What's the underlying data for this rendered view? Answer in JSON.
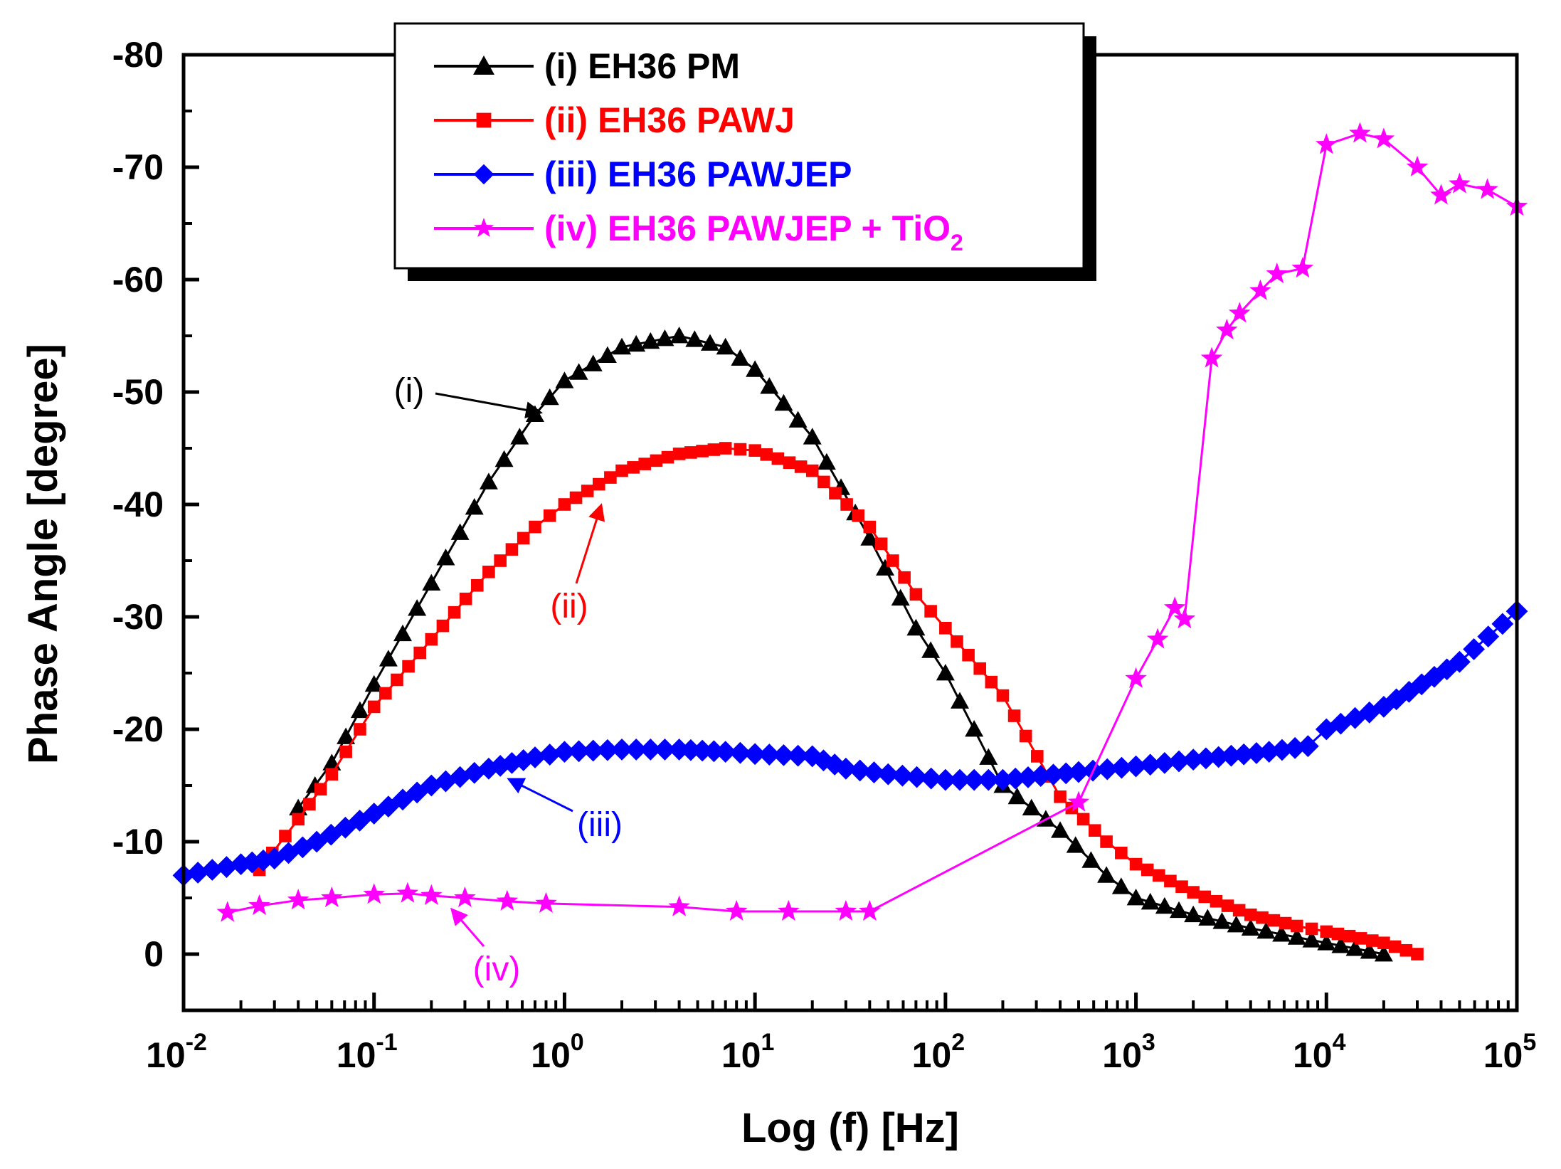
{
  "chart_data": {
    "type": "scatter",
    "xlabel": "Log (f) [Hz]",
    "ylabel": "Phase Angle [degree]",
    "x_scale": "log",
    "xlim": [
      0.01,
      100000
    ],
    "ylim": [
      5,
      -80
    ],
    "x_ticks": [
      {
        "base": "10",
        "exp": "-2"
      },
      {
        "base": "10",
        "exp": "-1"
      },
      {
        "base": "10",
        "exp": "0"
      },
      {
        "base": "10",
        "exp": "1"
      },
      {
        "base": "10",
        "exp": "2"
      },
      {
        "base": "10",
        "exp": "3"
      },
      {
        "base": "10",
        "exp": "4"
      },
      {
        "base": "10",
        "exp": "5"
      }
    ],
    "y_ticks": [
      "-80",
      "-70",
      "-60",
      "-50",
      "-40",
      "-30",
      "-20",
      "-10",
      "0"
    ],
    "grid": false,
    "legend_position": "top-center",
    "series": [
      {
        "name": "(i) EH36 PM",
        "color": "#000000",
        "marker": "triangle",
        "annotation": "(i)",
        "points": [
          [
            0.04,
            -13
          ],
          [
            0.06,
            -17
          ],
          [
            0.1,
            -24
          ],
          [
            0.2,
            -33
          ],
          [
            0.4,
            -42
          ],
          [
            0.7,
            -48
          ],
          [
            1,
            -51
          ],
          [
            2,
            -54
          ],
          [
            4,
            -55
          ],
          [
            7,
            -54
          ],
          [
            10,
            -52
          ],
          [
            20,
            -46
          ],
          [
            40,
            -37
          ],
          [
            70,
            -29
          ],
          [
            100,
            -25
          ],
          [
            200,
            -15
          ],
          [
            400,
            -11
          ],
          [
            700,
            -7
          ],
          [
            1000,
            -5
          ],
          [
            2000,
            -3.5
          ],
          [
            4000,
            -2.3
          ],
          [
            7000,
            -1.5
          ],
          [
            10000,
            -1
          ],
          [
            20000,
            0
          ]
        ]
      },
      {
        "name": "(ii) EH36 PAWJ",
        "color": "#ff0000",
        "marker": "square",
        "annotation": "(ii)",
        "points": [
          [
            0.025,
            -7.5
          ],
          [
            0.04,
            -12
          ],
          [
            0.06,
            -16
          ],
          [
            0.1,
            -22
          ],
          [
            0.2,
            -28
          ],
          [
            0.4,
            -34
          ],
          [
            0.7,
            -38
          ],
          [
            1,
            -40
          ],
          [
            2,
            -43
          ],
          [
            4,
            -44.5
          ],
          [
            7,
            -45
          ],
          [
            10,
            -44.8
          ],
          [
            20,
            -43
          ],
          [
            40,
            -38
          ],
          [
            70,
            -32
          ],
          [
            100,
            -29
          ],
          [
            200,
            -23
          ],
          [
            400,
            -14
          ],
          [
            700,
            -10
          ],
          [
            1000,
            -8
          ],
          [
            2000,
            -5.5
          ],
          [
            4000,
            -3.5
          ],
          [
            7000,
            -2.5
          ],
          [
            10000,
            -2
          ],
          [
            20000,
            -1
          ],
          [
            30000,
            0
          ]
        ]
      },
      {
        "name": "(iii) EH36 PAWJEP",
        "color": "#0000ff",
        "marker": "diamond",
        "annotation": "(iii)",
        "points": [
          [
            0.01,
            -7
          ],
          [
            0.02,
            -8
          ],
          [
            0.03,
            -8.5
          ],
          [
            0.05,
            -10
          ],
          [
            0.1,
            -12.5
          ],
          [
            0.2,
            -15
          ],
          [
            0.4,
            -16.5
          ],
          [
            0.7,
            -17.5
          ],
          [
            1,
            -18
          ],
          [
            2,
            -18.2
          ],
          [
            4,
            -18.2
          ],
          [
            7,
            -18
          ],
          [
            10,
            -17.8
          ],
          [
            20,
            -17.6
          ],
          [
            30,
            -16.5
          ],
          [
            50,
            -16
          ],
          [
            100,
            -15.5
          ],
          [
            200,
            -15.5
          ],
          [
            500,
            -16.2
          ],
          [
            1000,
            -16.7
          ],
          [
            2000,
            -17.3
          ],
          [
            5000,
            -18
          ],
          [
            8000,
            -18.5
          ],
          [
            10000,
            -20
          ],
          [
            20000,
            -22
          ],
          [
            50000,
            -26
          ],
          [
            100000,
            -30.5
          ]
        ]
      },
      {
        "name": "(iv) EH36 PAWJEP + TiO₂",
        "name_parts": {
          "main": "(iv) EH36 PAWJEP + TiO",
          "subscript": "2"
        },
        "color": "#ff00ff",
        "marker": "star",
        "annotation": "(iv)",
        "points": [
          [
            0.017,
            -3.7
          ],
          [
            0.025,
            -4.3
          ],
          [
            0.04,
            -4.8
          ],
          [
            0.06,
            -5
          ],
          [
            0.1,
            -5.3
          ],
          [
            0.15,
            -5.4
          ],
          [
            0.2,
            -5.2
          ],
          [
            0.3,
            -5
          ],
          [
            0.5,
            -4.7
          ],
          [
            0.8,
            -4.5
          ],
          [
            4,
            -4.2
          ],
          [
            8,
            -3.8
          ],
          [
            15,
            -3.8
          ],
          [
            30,
            -3.8
          ],
          [
            40,
            -3.8
          ],
          [
            500,
            -13.5
          ],
          [
            1000,
            -24.5
          ],
          [
            1300,
            -28
          ],
          [
            1600,
            -30.8
          ],
          [
            1800,
            -29.8
          ],
          [
            2500,
            -53
          ],
          [
            3000,
            -55.5
          ],
          [
            3500,
            -57
          ],
          [
            4500,
            -59
          ],
          [
            5500,
            -60.5
          ],
          [
            7500,
            -61
          ],
          [
            10000,
            -72
          ],
          [
            15000,
            -73
          ],
          [
            20000,
            -72.5
          ],
          [
            30000,
            -70
          ],
          [
            40000,
            -67.5
          ],
          [
            50000,
            -68.5
          ],
          [
            70000,
            -68
          ],
          [
            100000,
            -66.5
          ]
        ]
      }
    ]
  }
}
